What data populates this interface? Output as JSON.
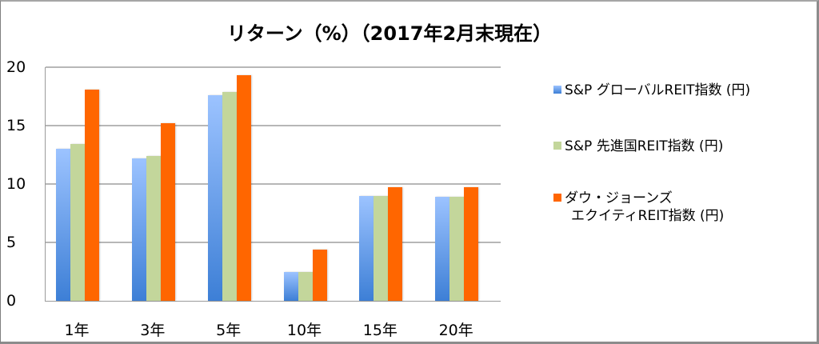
{
  "chart_data": {
    "type": "bar",
    "title": "リターン（%）（2017年2月末現在）",
    "xlabel": "",
    "ylabel": "",
    "ylim": [
      0,
      20
    ],
    "yticks": [
      "0",
      "5",
      "10",
      "15",
      "20"
    ],
    "grid": true,
    "legend_position": "right",
    "categories": [
      "1年",
      "3年",
      "5年",
      "10年",
      "15年",
      "20年"
    ],
    "series": [
      {
        "name": "S&P グローバルREIT指数 (円)",
        "color": "#5b9bd5",
        "values": [
          13.0,
          12.2,
          17.6,
          2.5,
          9.0,
          8.9
        ]
      },
      {
        "name": "S&P 先進国REIT指数 (円)",
        "color": "#c3d69b",
        "values": [
          13.4,
          12.4,
          17.9,
          2.5,
          9.0,
          8.9
        ]
      },
      {
        "name": "ダウ・ジョーンズ エクイティREIT指数 (円)",
        "color": "#ff6600",
        "values": [
          18.1,
          15.2,
          19.3,
          4.4,
          9.7,
          9.7
        ]
      }
    ]
  },
  "legend": {
    "items": [
      {
        "line1": "S&P グローバルREIT指数 (円)"
      },
      {
        "line1": "S&P 先進国REIT指数 (円)"
      },
      {
        "line1": "ダウ・ジョーンズ",
        "line2": "エクイティREIT指数  (円)"
      }
    ]
  }
}
